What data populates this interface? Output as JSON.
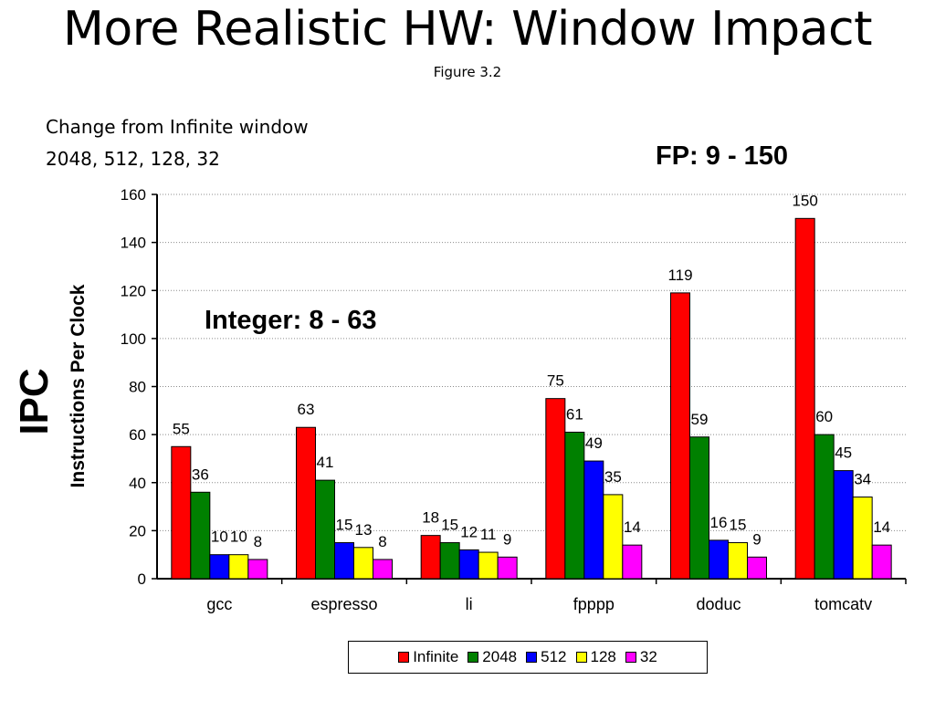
{
  "slide": {
    "title": "More Realistic HW: Window Impact",
    "figure_label": "Figure 3.2",
    "note_line1": "Change from Infinite window",
    "note_line2": "2048, 512, 128, 32",
    "fp_range": "FP: 9 - 150",
    "int_range": "Integer: 8 - 63",
    "ipc_label": "IPC"
  },
  "chart_data": {
    "type": "bar",
    "title": "",
    "xlabel": "",
    "ylabel": "Instructions Per Clock",
    "ylim": [
      0,
      160
    ],
    "yticks": [
      0,
      20,
      40,
      60,
      80,
      100,
      120,
      140,
      160
    ],
    "grid": "horizontal dotted",
    "legend_position": "bottom",
    "categories": [
      "gcc",
      "espresso",
      "li",
      "fpppp",
      "doduc",
      "tomcatv"
    ],
    "series": [
      {
        "name": "Infinite",
        "color": "#ff0000",
        "values": [
          55,
          63,
          18,
          75,
          119,
          150
        ]
      },
      {
        "name": "2048",
        "color": "#008000",
        "values": [
          36,
          41,
          15,
          61,
          59,
          60
        ]
      },
      {
        "name": "512",
        "color": "#0000ff",
        "values": [
          10,
          15,
          12,
          49,
          16,
          45
        ]
      },
      {
        "name": "128",
        "color": "#ffff00",
        "values": [
          10,
          13,
          11,
          35,
          15,
          34
        ]
      },
      {
        "name": "32",
        "color": "#ff00ff",
        "values": [
          8,
          8,
          9,
          14,
          9,
          14
        ]
      }
    ]
  }
}
